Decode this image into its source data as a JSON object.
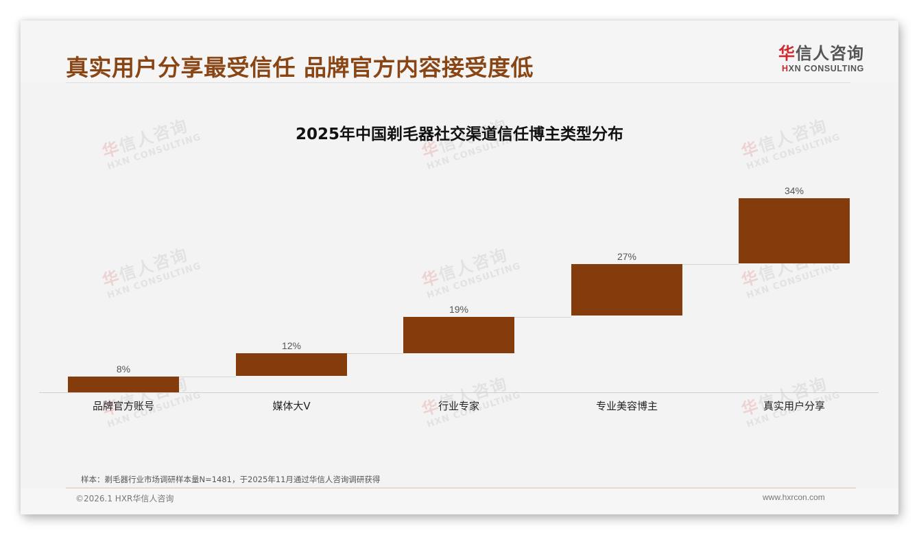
{
  "header": {
    "title": "真实用户分享最受信任 品牌官方内容接受度低",
    "logo": {
      "cn_first": "华",
      "cn_rest": "信人咨询",
      "en_first": "H",
      "en_rest": "XN CONSULTING"
    }
  },
  "watermark": {
    "cn_first": "华",
    "cn_rest": "信人咨询",
    "en": "HXN CONSULTING"
  },
  "chart_data": {
    "type": "bar",
    "subtype": "waterfall",
    "title": "2025年中国剃毛器社交渠道信任博主类型分布",
    "categories": [
      "品牌官方账号",
      "媒体大V",
      "行业专家",
      "专业美容博主",
      "真实用户分享"
    ],
    "values": [
      8,
      12,
      19,
      27,
      34
    ],
    "value_labels": [
      "8%",
      "12%",
      "19%",
      "27%",
      "34%"
    ],
    "unit": "%",
    "cumulative_total": 100,
    "xlabel": "",
    "ylabel": "",
    "ylim": [
      0,
      100
    ],
    "grid": false,
    "legend": null,
    "bar_color": "#843c0c"
  },
  "footer": {
    "footnote": "样本：剃毛器行业市场调研样本量N=1481，于2025年11月通过华信人咨询调研获得",
    "copyright": "©2026.1 HXR华信人咨询",
    "website": "www.hxrcon.com"
  },
  "colors": {
    "title": "#8a4514",
    "bar": "#843c0c",
    "logo_accent": "#d0282e",
    "background": "#f3f3f3"
  }
}
